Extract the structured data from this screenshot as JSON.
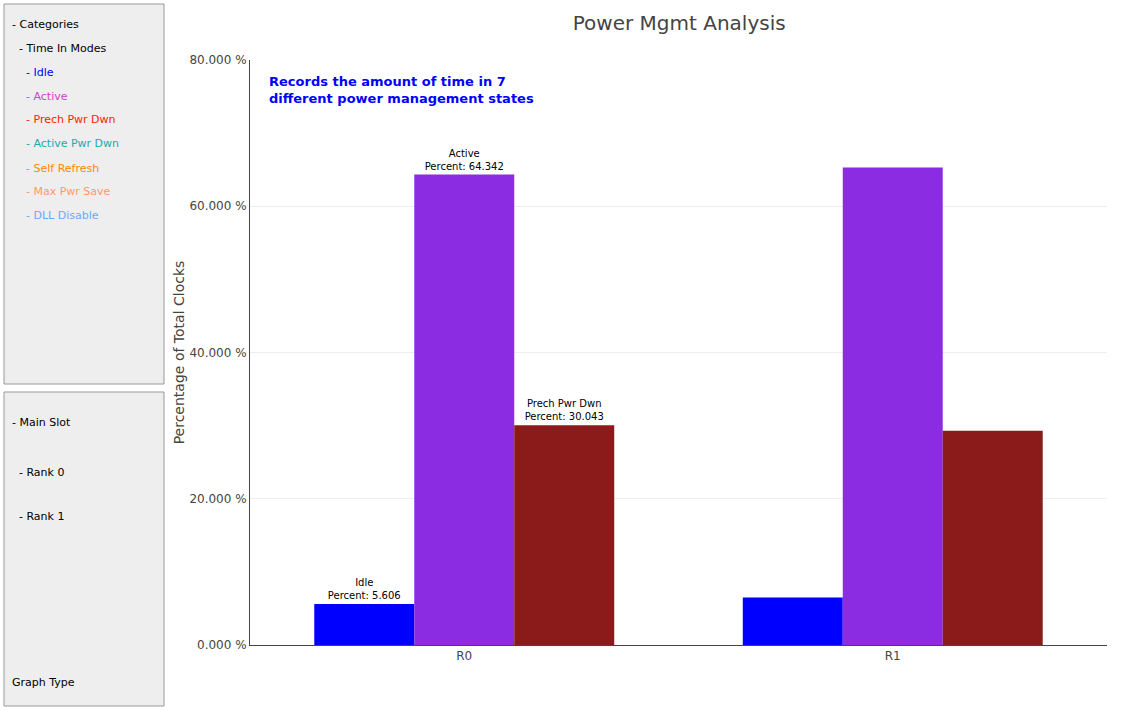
{
  "chart_data": {
    "type": "bar",
    "title": "Power Mgmt Analysis",
    "ylabel": "Percentage of Total Clocks",
    "categories": [
      "R0",
      "R1"
    ],
    "series": [
      {
        "name": "Idle",
        "color": "#0000FF",
        "values": [
          5.606,
          6.5
        ],
        "value_labels": [
          "Idle\nPercent: 5.606",
          null
        ]
      },
      {
        "name": "Active",
        "color": "#8B2BE2",
        "values": [
          64.342,
          65.3
        ],
        "value_labels": [
          "Active\nPercent: 64.342",
          null
        ]
      },
      {
        "name": "Prech Pwr Dwn",
        "color": "#8B1A1A",
        "values": [
          30.043,
          29.3
        ],
        "value_labels": [
          "Prech Pwr Dwn\nPercent: 30.043",
          null
        ]
      }
    ],
    "ylim": [
      0,
      80
    ],
    "yticks": [
      {
        "value": 0,
        "label": "0.000 %"
      },
      {
        "value": 20,
        "label": "20.000 %"
      },
      {
        "value": 40,
        "label": "40.000 %"
      },
      {
        "value": 60,
        "label": "60.000 %"
      },
      {
        "value": 80,
        "label": "80.000 %"
      }
    ],
    "grid": true,
    "annotations": [
      {
        "text": "Records the amount of time in 7\ndifferent power management states",
        "color": "blue"
      },
      {
        "texts": [
          "- Categories",
          "  - Time In Modes",
          "    - Idle",
          "    - Active",
          "    - Prech Pwr Dwn",
          "    - Active Pwr Dwn",
          "    - Self Refresh",
          "    - Max Pwr Save",
          "    - DLL Disable"
        ],
        "colors": [
          "#000000",
          "#000000",
          "#0000FF",
          "#CC44CC",
          "#FF2200",
          "#22AAAA",
          "#FF8800",
          "#FF9966",
          "#66AAFF"
        ]
      },
      {
        "texts": [
          "- Main Slot",
          "  - Rank 0",
          "  - Rank 1",
          "Graph Type"
        ]
      }
    ]
  }
}
